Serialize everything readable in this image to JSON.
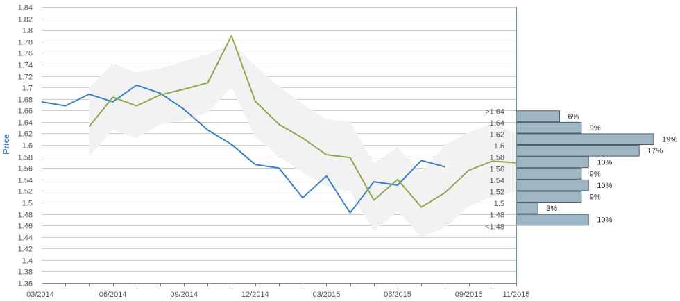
{
  "chart_data": {
    "type": "line",
    "ylabel": "Price",
    "ylim": [
      1.36,
      1.84
    ],
    "y_ticks": [
      "1.36",
      "1.38",
      "1.4",
      "1.42",
      "1.44",
      "1.46",
      "1.48",
      "1.5",
      "1.52",
      "1.54",
      "1.56",
      "1.58",
      "1.6",
      "1.62",
      "1.64",
      "1.66",
      "1.68",
      "1.7",
      "1.72",
      "1.74",
      "1.76",
      "1.78",
      "1.8",
      "1.82",
      "1.84"
    ],
    "x_ticks": [
      "03/2014",
      "06/2014",
      "09/2014",
      "12/2014",
      "03/2015",
      "06/2015",
      "09/2015",
      "11/2015"
    ],
    "grid": true,
    "series": [
      {
        "color": "#3a7fcf",
        "points": [
          [
            "2014-03",
            1.675
          ],
          [
            "2014-04",
            1.668
          ],
          [
            "2014-05",
            1.688
          ],
          [
            "2014-06",
            1.675
          ],
          [
            "2014-07",
            1.704
          ],
          [
            "2014-08",
            1.69
          ],
          [
            "2014-09",
            1.662
          ],
          [
            "2014-10",
            1.626
          ],
          [
            "2014-11",
            1.601
          ],
          [
            "2014-12",
            1.566
          ],
          [
            "2015-01",
            1.56
          ],
          [
            "2015-02",
            1.508
          ],
          [
            "2015-03",
            1.546
          ],
          [
            "2015-04",
            1.482
          ],
          [
            "2015-05",
            1.536
          ],
          [
            "2015-06",
            1.53
          ],
          [
            "2015-07",
            1.573
          ],
          [
            "2015-08",
            1.562
          ]
        ]
      },
      {
        "color": "#8aab4a",
        "points": [
          [
            "2014-05",
            1.632
          ],
          [
            "2014-06",
            1.683
          ],
          [
            "2014-07",
            1.668
          ],
          [
            "2014-08",
            1.687
          ],
          [
            "2014-09",
            1.697
          ],
          [
            "2014-10",
            1.708
          ],
          [
            "2014-11",
            1.79
          ],
          [
            "2014-12",
            1.676
          ],
          [
            "2015-01",
            1.636
          ],
          [
            "2015-02",
            1.612
          ],
          [
            "2015-03",
            1.583
          ],
          [
            "2015-04",
            1.578
          ],
          [
            "2015-05",
            1.504
          ],
          [
            "2015-06",
            1.54
          ],
          [
            "2015-07",
            1.492
          ],
          [
            "2015-08",
            1.517
          ],
          [
            "2015-09",
            1.556
          ],
          [
            "2015-10",
            1.572
          ],
          [
            "2015-11",
            1.569
          ]
        ]
      }
    ],
    "band": {
      "color": "#f2f2f2",
      "upper": [
        [
          "2014-05",
          1.7
        ],
        [
          "2014-06",
          1.741
        ],
        [
          "2014-07",
          1.726
        ],
        [
          "2014-08",
          1.734
        ],
        [
          "2014-09",
          1.746
        ],
        [
          "2014-10",
          1.758
        ],
        [
          "2014-11",
          1.778
        ],
        [
          "2014-12",
          1.738
        ],
        [
          "2015-01",
          1.702
        ],
        [
          "2015-02",
          1.671
        ],
        [
          "2015-03",
          1.645
        ],
        [
          "2015-04",
          1.64
        ],
        [
          "2015-05",
          1.568
        ],
        [
          "2015-06",
          1.596
        ],
        [
          "2015-07",
          1.553
        ],
        [
          "2015-08",
          1.6
        ],
        [
          "2015-09",
          1.622
        ],
        [
          "2015-10",
          1.638
        ],
        [
          "2015-11",
          1.62
        ]
      ],
      "lower": [
        [
          "2014-05",
          1.58
        ],
        [
          "2014-06",
          1.626
        ],
        [
          "2014-07",
          1.612
        ],
        [
          "2014-08",
          1.636
        ],
        [
          "2014-09",
          1.643
        ],
        [
          "2014-10",
          1.656
        ],
        [
          "2014-11",
          1.7
        ],
        [
          "2014-12",
          1.614
        ],
        [
          "2015-01",
          1.58
        ],
        [
          "2015-02",
          1.552
        ],
        [
          "2015-03",
          1.527
        ],
        [
          "2015-04",
          1.519
        ],
        [
          "2015-05",
          1.45
        ],
        [
          "2015-06",
          1.484
        ],
        [
          "2015-07",
          1.44
        ],
        [
          "2015-08",
          1.456
        ],
        [
          "2015-09",
          1.493
        ],
        [
          "2015-10",
          1.51
        ],
        [
          "2015-11",
          1.519
        ]
      ]
    },
    "distribution": {
      "color": "#9fb7c4",
      "bins": [
        {
          "label": ">1.64",
          "value": 6,
          "text": "6%"
        },
        {
          "label": "1.64",
          "value": 9,
          "text": "9%"
        },
        {
          "label": "1.62",
          "value": 19,
          "text": "19%"
        },
        {
          "label": "1.6",
          "value": 17,
          "text": "17%"
        },
        {
          "label": "1.58",
          "value": 10,
          "text": "10%"
        },
        {
          "label": "1.56",
          "value": 9,
          "text": "9%"
        },
        {
          "label": "1.54",
          "value": 10,
          "text": "10%"
        },
        {
          "label": "1.52",
          "value": 9,
          "text": "9%"
        },
        {
          "label": "1.5",
          "value": 3,
          "text": "3%"
        },
        {
          "label": "1.48",
          "value": 10,
          "text": "10%"
        },
        {
          "label": "<1.48",
          "value": null,
          "text": ""
        }
      ]
    }
  }
}
